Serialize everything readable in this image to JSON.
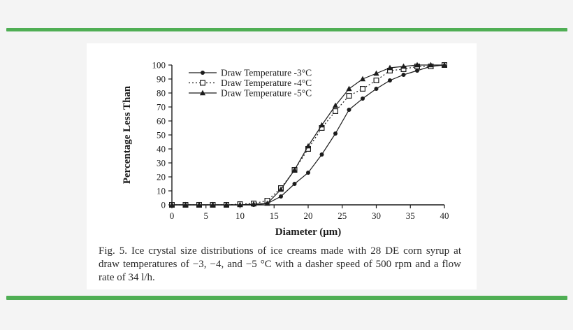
{
  "colors": {
    "accent_green": "#4fae54",
    "page_background": "#f4f4f4",
    "panel_background": "#ffffff",
    "ink": "#1c1c1c"
  },
  "figure": {
    "caption": "Fig. 5.  Ice crystal size distributions of ice creams made with 28 DE corn syrup at draw temperatures of −3, −4, and −5 °C with a dasher speed of 500 rpm and a flow rate of 34 l/h."
  },
  "chart_data": {
    "type": "line",
    "title": "",
    "xlabel": "Diameter (μm)",
    "ylabel": "Percentage Less Than",
    "xlim": [
      0,
      40
    ],
    "ylim": [
      0,
      100
    ],
    "x_ticks": [
      0,
      5,
      10,
      15,
      20,
      25,
      30,
      35,
      40
    ],
    "y_ticks": [
      0,
      10,
      20,
      30,
      40,
      50,
      60,
      70,
      80,
      90,
      100
    ],
    "grid": false,
    "legend_position": "top-left",
    "x": [
      0,
      2,
      4,
      6,
      8,
      10,
      12,
      14,
      16,
      18,
      20,
      22,
      24,
      26,
      28,
      30,
      32,
      34,
      36,
      38,
      40
    ],
    "series": [
      {
        "name": "Draw Temperature -3°C",
        "marker": "circle",
        "line": "solid",
        "values": [
          0,
          0,
          0,
          0,
          0,
          0,
          0,
          1,
          6,
          15,
          23,
          36,
          51,
          68,
          76,
          83,
          89,
          93,
          96,
          99,
          100
        ]
      },
      {
        "name": "Draw Temperature -4°C",
        "marker": "square-open",
        "line": "dotted",
        "values": [
          0,
          0,
          0,
          0,
          0,
          0.5,
          1,
          3,
          12,
          25,
          40,
          55,
          67,
          78,
          83,
          89,
          96,
          97,
          99,
          99,
          100
        ]
      },
      {
        "name": "Draw Temperature -5°C",
        "marker": "triangle",
        "line": "solid",
        "values": [
          0,
          0,
          0,
          0,
          0,
          0,
          0.5,
          1,
          11,
          25,
          42,
          57,
          71,
          83,
          90,
          94,
          98,
          99,
          100,
          100,
          100
        ]
      }
    ]
  }
}
